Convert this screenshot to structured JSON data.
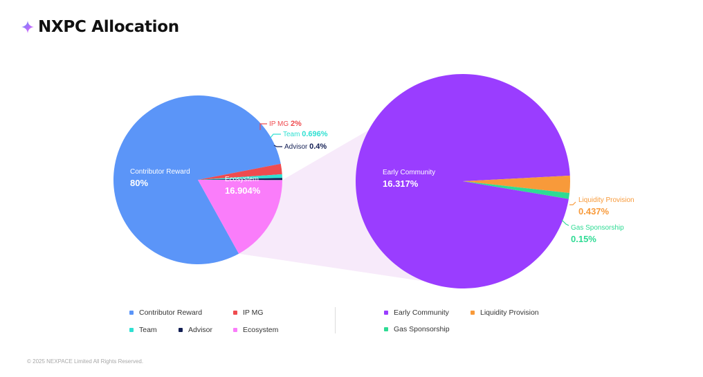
{
  "page": {
    "title": "NXPC Allocation",
    "copyright": "© 2025 NEXPACE Limited All Rights Reserved."
  },
  "colors": {
    "contributor_reward": "#5b95f8",
    "ip_mg": "#ef4b4f",
    "team": "#2fe0d2",
    "advisor": "#131f54",
    "ecosystem": "#fa7dfa",
    "early_community": "#9a3dff",
    "liquidity_provision": "#f89a3a",
    "gas_sponsorship": "#2edb94",
    "connector": "#f7eafa"
  },
  "chart_data": [
    {
      "type": "pie",
      "slices": [
        {
          "name": "Contributor Reward",
          "value": 80,
          "label_value": "80%",
          "color": "#5b95f8"
        },
        {
          "name": "IP MG",
          "value": 2,
          "label_value": "2%",
          "color": "#ef4b4f"
        },
        {
          "name": "Team",
          "value": 0.696,
          "label_value": "0.696%",
          "color": "#2fe0d2"
        },
        {
          "name": "Advisor",
          "value": 0.4,
          "label_value": "0.4%",
          "color": "#131f54"
        },
        {
          "name": "Ecosystem",
          "value": 16.904,
          "label_value": "16.904%",
          "color": "#fa7dfa"
        }
      ]
    },
    {
      "type": "pie",
      "slices": [
        {
          "name": "Early Community",
          "value": 16.317,
          "label_value": "16.317%",
          "color": "#9a3dff"
        },
        {
          "name": "Liquidity Provision",
          "value": 0.437,
          "label_value": "0.437%",
          "color": "#f89a3a"
        },
        {
          "name": "Gas Sponsorship",
          "value": 0.15,
          "label_value": "0.15%",
          "color": "#2edb94"
        }
      ]
    }
  ],
  "legend": {
    "left": [
      {
        "label": "Contributor Reward",
        "color": "#5b95f8"
      },
      {
        "label": "IP MG",
        "color": "#ef4b4f"
      },
      {
        "label": "Team",
        "color": "#2fe0d2"
      },
      {
        "label": "Advisor",
        "color": "#131f54"
      },
      {
        "label": "Ecosystem",
        "color": "#fa7dfa"
      }
    ],
    "right": [
      {
        "label": "Early Community",
        "color": "#9a3dff"
      },
      {
        "label": "Liquidity Provision",
        "color": "#f89a3a"
      },
      {
        "label": "Gas Sponsorship",
        "color": "#2edb94"
      }
    ]
  }
}
